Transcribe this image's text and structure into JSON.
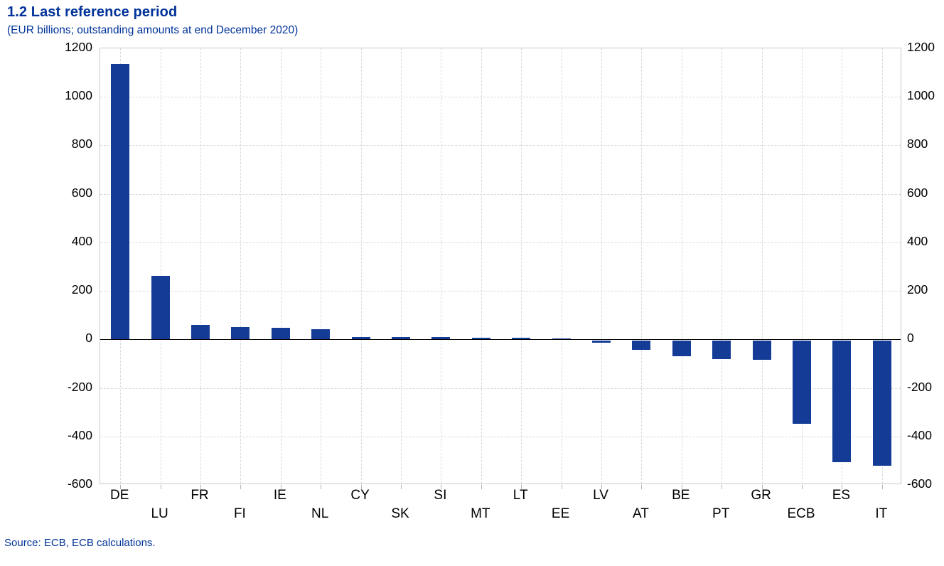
{
  "header": {
    "title": "1.2 Last reference period",
    "subtitle": "(EUR billions; outstanding amounts at end December 2020)"
  },
  "source_note": "Source: ECB, ECB calculations.",
  "colors": {
    "bar": "#143c96",
    "accent_text": "#003299",
    "axis_text": "#000000",
    "gridline": "#d9d9d9",
    "plot_border": "#c9c9c9",
    "zero_line": "#000000"
  },
  "chart_data": {
    "type": "bar",
    "title": "1.2 Last reference period",
    "subtitle": "(EUR billions; outstanding amounts at end December 2020)",
    "unit": "EUR billions",
    "categories": [
      "DE",
      "LU",
      "FR",
      "FI",
      "IE",
      "NL",
      "CY",
      "SK",
      "SI",
      "MT",
      "LT",
      "EE",
      "LV",
      "AT",
      "BE",
      "PT",
      "GR",
      "ECB",
      "ES",
      "IT"
    ],
    "values": [
      1136,
      262,
      61,
      52,
      47,
      42,
      11,
      10,
      9,
      8,
      7,
      1,
      -9,
      -40,
      -66,
      -76,
      -80,
      -343,
      -503,
      -517
    ],
    "ylim": [
      -600,
      1200
    ],
    "ytick_interval": 200,
    "yticks": [
      1200,
      1000,
      800,
      600,
      400,
      200,
      0,
      -200,
      -400,
      -600
    ],
    "grid": "dashed, horizontal at each ytick and vertical at each bar center",
    "legend": "none",
    "y_axis_sides": "both",
    "x_label_stagger": true,
    "source": "Source: ECB, ECB calculations."
  }
}
